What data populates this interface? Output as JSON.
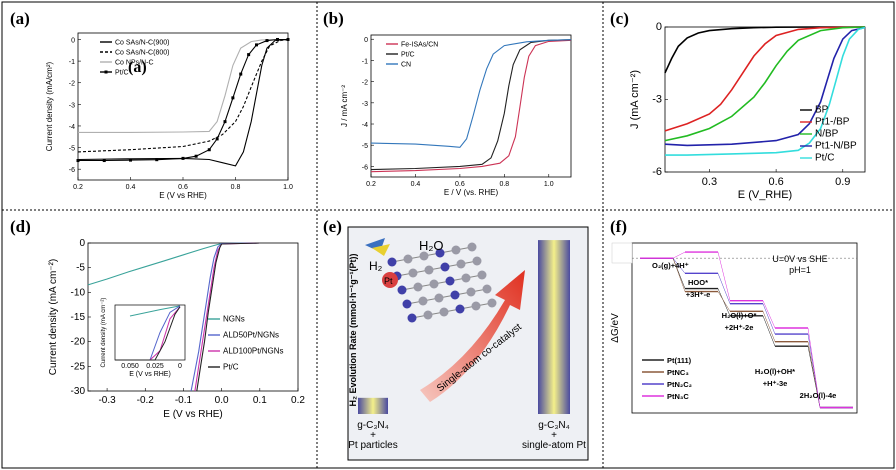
{
  "figure": {
    "panels": {
      "a": {
        "label": "(a)",
        "inset_label": "(a)"
      },
      "b": {
        "label": "(b)"
      },
      "c": {
        "label": "(c)"
      },
      "d": {
        "label": "(d)"
      },
      "e": {
        "label": "(e)"
      },
      "f": {
        "label": "(f)"
      }
    }
  },
  "chart_data": [
    {
      "panel": "a",
      "type": "line",
      "xlabel": "E (V vs RHE)",
      "ylabel": "Current density (mA/cm²)",
      "xlim": [
        0.2,
        1.0
      ],
      "ylim": [
        -6.5,
        0.3
      ],
      "xticks": [
        "0.2",
        "0.4",
        "0.6",
        "0.8",
        "1.0"
      ],
      "yticks": [
        "0",
        "-1",
        "-2",
        "-3",
        "-4",
        "-5",
        "-6"
      ],
      "legend_position": "top-right",
      "series": [
        {
          "name": "Co SAs/N-C(900)",
          "style": "solid",
          "color": "#000000",
          "points": [
            [
              0.2,
              -5.55
            ],
            [
              0.4,
              -5.52
            ],
            [
              0.6,
              -5.5
            ],
            [
              0.7,
              -5.55
            ],
            [
              0.75,
              -5.7
            ],
            [
              0.8,
              -5.85
            ],
            [
              0.83,
              -5.2
            ],
            [
              0.86,
              -3.8
            ],
            [
              0.88,
              -2.5
            ],
            [
              0.9,
              -1.2
            ],
            [
              0.92,
              -0.4
            ],
            [
              0.95,
              -0.05
            ],
            [
              1.0,
              0
            ]
          ]
        },
        {
          "name": "Co SAs/N-C(800)",
          "style": "dashed",
          "color": "#000000",
          "points": [
            [
              0.2,
              -5.2
            ],
            [
              0.4,
              -5.1
            ],
            [
              0.6,
              -4.95
            ],
            [
              0.7,
              -4.7
            ],
            [
              0.75,
              -4.4
            ],
            [
              0.8,
              -3.8
            ],
            [
              0.83,
              -3.1
            ],
            [
              0.86,
              -2.2
            ],
            [
              0.9,
              -1.0
            ],
            [
              0.93,
              -0.3
            ],
            [
              0.97,
              -0.05
            ],
            [
              1.0,
              0
            ]
          ]
        },
        {
          "name": "Co NPs/N-C",
          "style": "solid",
          "color": "#b0b0b0",
          "points": [
            [
              0.2,
              -4.3
            ],
            [
              0.4,
              -4.3
            ],
            [
              0.6,
              -4.28
            ],
            [
              0.7,
              -4.25
            ],
            [
              0.73,
              -3.8
            ],
            [
              0.76,
              -2.6
            ],
            [
              0.79,
              -1.2
            ],
            [
              0.82,
              -0.4
            ],
            [
              0.86,
              -0.1
            ],
            [
              0.9,
              -0.02
            ],
            [
              1.0,
              0
            ]
          ]
        },
        {
          "name": "Pt/C",
          "style": "solid-square",
          "color": "#000000",
          "points": [
            [
              0.2,
              -5.6
            ],
            [
              0.3,
              -5.6
            ],
            [
              0.4,
              -5.58
            ],
            [
              0.5,
              -5.56
            ],
            [
              0.6,
              -5.5
            ],
            [
              0.65,
              -5.4
            ],
            [
              0.7,
              -5.1
            ],
            [
              0.73,
              -4.6
            ],
            [
              0.76,
              -3.8
            ],
            [
              0.79,
              -2.7
            ],
            [
              0.82,
              -1.6
            ],
            [
              0.85,
              -0.7
            ],
            [
              0.88,
              -0.25
            ],
            [
              0.92,
              -0.05
            ],
            [
              0.96,
              0
            ],
            [
              1.0,
              0
            ]
          ]
        }
      ]
    },
    {
      "panel": "b",
      "type": "line",
      "xlabel": "E / V (vs. RHE)",
      "ylabel": "J / mA cm⁻²",
      "xlim": [
        0.2,
        1.1
      ],
      "ylim": [
        -6.5,
        0.2
      ],
      "xticks": [
        "0.2",
        "0.4",
        "0.6",
        "0.8",
        "1.0"
      ],
      "yticks": [
        "0",
        "-1",
        "-2",
        "-3",
        "-4",
        "-5",
        "-6"
      ],
      "legend_position": "top-left",
      "series": [
        {
          "name": "Fe-ISAs/CN",
          "color": "#cc3355",
          "points": [
            [
              0.2,
              -6.25
            ],
            [
              0.4,
              -6.2
            ],
            [
              0.6,
              -6.1
            ],
            [
              0.7,
              -6.0
            ],
            [
              0.78,
              -5.85
            ],
            [
              0.82,
              -5.5
            ],
            [
              0.85,
              -4.6
            ],
            [
              0.87,
              -3.2
            ],
            [
              0.89,
              -1.8
            ],
            [
              0.91,
              -0.8
            ],
            [
              0.94,
              -0.3
            ],
            [
              1.0,
              -0.1
            ],
            [
              1.1,
              -0.05
            ]
          ]
        },
        {
          "name": "Pt/C",
          "color": "#222222",
          "points": [
            [
              0.2,
              -6.15
            ],
            [
              0.4,
              -6.1
            ],
            [
              0.6,
              -6.0
            ],
            [
              0.7,
              -5.9
            ],
            [
              0.74,
              -5.6
            ],
            [
              0.77,
              -4.8
            ],
            [
              0.8,
              -3.5
            ],
            [
              0.82,
              -2.2
            ],
            [
              0.84,
              -1.2
            ],
            [
              0.87,
              -0.5
            ],
            [
              0.92,
              -0.15
            ],
            [
              1.0,
              -0.05
            ],
            [
              1.1,
              -0.02
            ]
          ]
        },
        {
          "name": "CN",
          "color": "#3377bb",
          "points": [
            [
              0.2,
              -4.9
            ],
            [
              0.4,
              -4.95
            ],
            [
              0.55,
              -5.05
            ],
            [
              0.6,
              -5.1
            ],
            [
              0.63,
              -4.7
            ],
            [
              0.66,
              -3.6
            ],
            [
              0.69,
              -2.4
            ],
            [
              0.72,
              -1.4
            ],
            [
              0.75,
              -0.7
            ],
            [
              0.8,
              -0.3
            ],
            [
              0.9,
              -0.12
            ],
            [
              1.0,
              -0.05
            ],
            [
              1.1,
              -0.02
            ]
          ]
        }
      ]
    },
    {
      "panel": "c",
      "type": "line",
      "xlabel": "E (V_RHE)",
      "ylabel": "J (mA cm⁻²)",
      "xlim": [
        0.1,
        1.0
      ],
      "ylim": [
        -6,
        0
      ],
      "xticks": [
        "0.3",
        "0.6",
        "0.9"
      ],
      "yticks": [
        "0",
        "-3",
        "-6"
      ],
      "legend_position": "bottom-right",
      "series": [
        {
          "name": "BP",
          "color": "#000000",
          "points": [
            [
              0.1,
              -1.9
            ],
            [
              0.13,
              -1.3
            ],
            [
              0.16,
              -0.8
            ],
            [
              0.2,
              -0.45
            ],
            [
              0.25,
              -0.25
            ],
            [
              0.3,
              -0.15
            ],
            [
              0.4,
              -0.07
            ],
            [
              0.5,
              -0.03
            ],
            [
              0.6,
              -0.01
            ],
            [
              0.8,
              0
            ],
            [
              1.0,
              0
            ]
          ]
        },
        {
          "name": "Pt1-/BP",
          "color": "#dd2222",
          "points": [
            [
              0.1,
              -4.3
            ],
            [
              0.2,
              -4.0
            ],
            [
              0.3,
              -3.6
            ],
            [
              0.35,
              -3.2
            ],
            [
              0.4,
              -2.6
            ],
            [
              0.45,
              -1.9
            ],
            [
              0.5,
              -1.2
            ],
            [
              0.55,
              -0.7
            ],
            [
              0.6,
              -0.35
            ],
            [
              0.7,
              -0.1
            ],
            [
              0.8,
              -0.03
            ],
            [
              1.0,
              0
            ]
          ]
        },
        {
          "name": "N/BP",
          "color": "#22bb22",
          "points": [
            [
              0.1,
              -4.7
            ],
            [
              0.2,
              -4.5
            ],
            [
              0.3,
              -4.2
            ],
            [
              0.4,
              -3.7
            ],
            [
              0.5,
              -2.9
            ],
            [
              0.55,
              -2.3
            ],
            [
              0.6,
              -1.6
            ],
            [
              0.65,
              -1.0
            ],
            [
              0.7,
              -0.55
            ],
            [
              0.8,
              -0.15
            ],
            [
              0.9,
              -0.03
            ],
            [
              1.0,
              0
            ]
          ]
        },
        {
          "name": "Pt1-N/BP",
          "color": "#2222aa",
          "points": [
            [
              0.1,
              -4.85
            ],
            [
              0.2,
              -4.9
            ],
            [
              0.4,
              -4.85
            ],
            [
              0.6,
              -4.7
            ],
            [
              0.7,
              -4.45
            ],
            [
              0.75,
              -4.0
            ],
            [
              0.8,
              -3.1
            ],
            [
              0.83,
              -2.2
            ],
            [
              0.86,
              -1.3
            ],
            [
              0.9,
              -0.5
            ],
            [
              0.94,
              -0.15
            ],
            [
              1.0,
              -0.02
            ]
          ]
        },
        {
          "name": "Pt/C",
          "color": "#33dddd",
          "points": [
            [
              0.1,
              -5.3
            ],
            [
              0.2,
              -5.3
            ],
            [
              0.4,
              -5.25
            ],
            [
              0.6,
              -5.2
            ],
            [
              0.7,
              -5.1
            ],
            [
              0.75,
              -4.8
            ],
            [
              0.8,
              -4.2
            ],
            [
              0.84,
              -3.2
            ],
            [
              0.87,
              -2.2
            ],
            [
              0.9,
              -1.2
            ],
            [
              0.93,
              -0.5
            ],
            [
              0.97,
              -0.1
            ],
            [
              1.0,
              -0.02
            ]
          ]
        }
      ]
    },
    {
      "panel": "d",
      "type": "line",
      "xlabel": "E (V vs RHE)",
      "ylabel": "Current density (mA cm⁻²)",
      "xlim": [
        -0.35,
        0.2
      ],
      "ylim": [
        -30,
        0
      ],
      "xticks": [
        "-0.3",
        "-0.2",
        "-0.1",
        "0.0",
        "0.1",
        "0.2"
      ],
      "yticks": [
        "0",
        "-5",
        "-10",
        "-15",
        "-20",
        "-25",
        "-30"
      ],
      "legend_position": "bottom-right",
      "series": [
        {
          "name": "NGNs",
          "color": "#3aa39a",
          "points": [
            [
              -0.35,
              -8.5
            ],
            [
              -0.3,
              -7.3
            ],
            [
              -0.25,
              -6.0
            ],
            [
              -0.2,
              -4.8
            ],
            [
              -0.15,
              -3.6
            ],
            [
              -0.1,
              -2.4
            ],
            [
              -0.05,
              -1.2
            ],
            [
              -0.02,
              -0.5
            ],
            [
              0.0,
              -0.1
            ],
            [
              0.1,
              0
            ]
          ]
        },
        {
          "name": "ALD50Pt/NGNs",
          "color": "#5566cc",
          "points": [
            [
              -0.08,
              -30
            ],
            [
              -0.07,
              -26
            ],
            [
              -0.06,
              -22
            ],
            [
              -0.05,
              -17
            ],
            [
              -0.04,
              -12
            ],
            [
              -0.03,
              -7
            ],
            [
              -0.02,
              -3
            ],
            [
              -0.01,
              -0.8
            ],
            [
              0.0,
              -0.1
            ],
            [
              0.1,
              0
            ]
          ]
        },
        {
          "name": "ALD100Pt/NGNs",
          "color": "#cc33aa",
          "points": [
            [
              -0.07,
              -30
            ],
            [
              -0.06,
              -25
            ],
            [
              -0.05,
              -20
            ],
            [
              -0.04,
              -15
            ],
            [
              -0.03,
              -10
            ],
            [
              -0.02,
              -5
            ],
            [
              -0.01,
              -1.5
            ],
            [
              0.0,
              -0.2
            ],
            [
              0.1,
              0
            ]
          ]
        },
        {
          "name": "Pt/C",
          "color": "#222222",
          "points": [
            [
              -0.065,
              -30
            ],
            [
              -0.055,
              -25
            ],
            [
              -0.045,
              -20
            ],
            [
              -0.035,
              -14
            ],
            [
              -0.025,
              -9
            ],
            [
              -0.015,
              -4
            ],
            [
              -0.005,
              -1
            ],
            [
              0.0,
              -0.2
            ],
            [
              0.1,
              0
            ]
          ]
        }
      ],
      "inset": {
        "xlabel": "E (V vs RHE)",
        "ylabel": "Current density (mA cm⁻²)",
        "xticks": [
          "0.050",
          "0.025",
          "0"
        ]
      }
    },
    {
      "panel": "e",
      "type": "bar",
      "ylabel": "H₂ Evolution Rate (mmol·h⁻¹g⁻¹(Pt))",
      "categories": [
        "g-C3N4 + Pt particles",
        "g-C3N4 + single-atom Pt"
      ],
      "values": [
        0.08,
        0.86
      ],
      "cat_lines": [
        [
          "g-C₃N₄",
          "+",
          "Pt particles"
        ],
        [
          "g-C₃N₄",
          "+",
          "single-atom Pt"
        ]
      ],
      "annotations": {
        "arrow": "Single-atom co-catalyst",
        "h2o": "H₂O",
        "h2": "H₂",
        "pt": "Pt"
      }
    },
    {
      "panel": "f",
      "type": "line",
      "ylabel": "ΔG/eV",
      "conditions": [
        "U=0V vs SHE",
        "pH=1"
      ],
      "steps": [
        "O₂(g)+4H⁺",
        "HOO* +3H⁺-e",
        "H₂O(l)+O* +2H⁺-2e",
        "H₂O(l)+OH* +H⁺-3e",
        "2H₂O(l)-4e"
      ],
      "step_lines": [
        [
          "O₂(g)+4H⁺"
        ],
        [
          "HOO*",
          "+3H⁺-e"
        ],
        [
          "H₂O(l)+O*",
          "+2H⁺-2e"
        ],
        [
          "H₂O(l)+OH*",
          "+H⁺-3e"
        ],
        [
          "2H₂O(l)-4e"
        ]
      ],
      "series": [
        {
          "name": "Pt(111)",
          "color": "#222222",
          "values": [
            0,
            -1.0,
            -1.9,
            -2.9,
            -4.92
          ]
        },
        {
          "name": "PtNC₃",
          "color": "#8b5a3c",
          "values": [
            0,
            -1.1,
            -1.75,
            -2.75,
            -4.92
          ]
        },
        {
          "name": "PtN₂C₂",
          "color": "#5544cc",
          "values": [
            0,
            -0.5,
            -1.5,
            -2.5,
            -4.92
          ]
        },
        {
          "name": "PtN₃C",
          "color": "#dd33dd",
          "values": [
            0,
            0.2,
            -1.4,
            -2.3,
            -4.92
          ]
        }
      ]
    }
  ]
}
